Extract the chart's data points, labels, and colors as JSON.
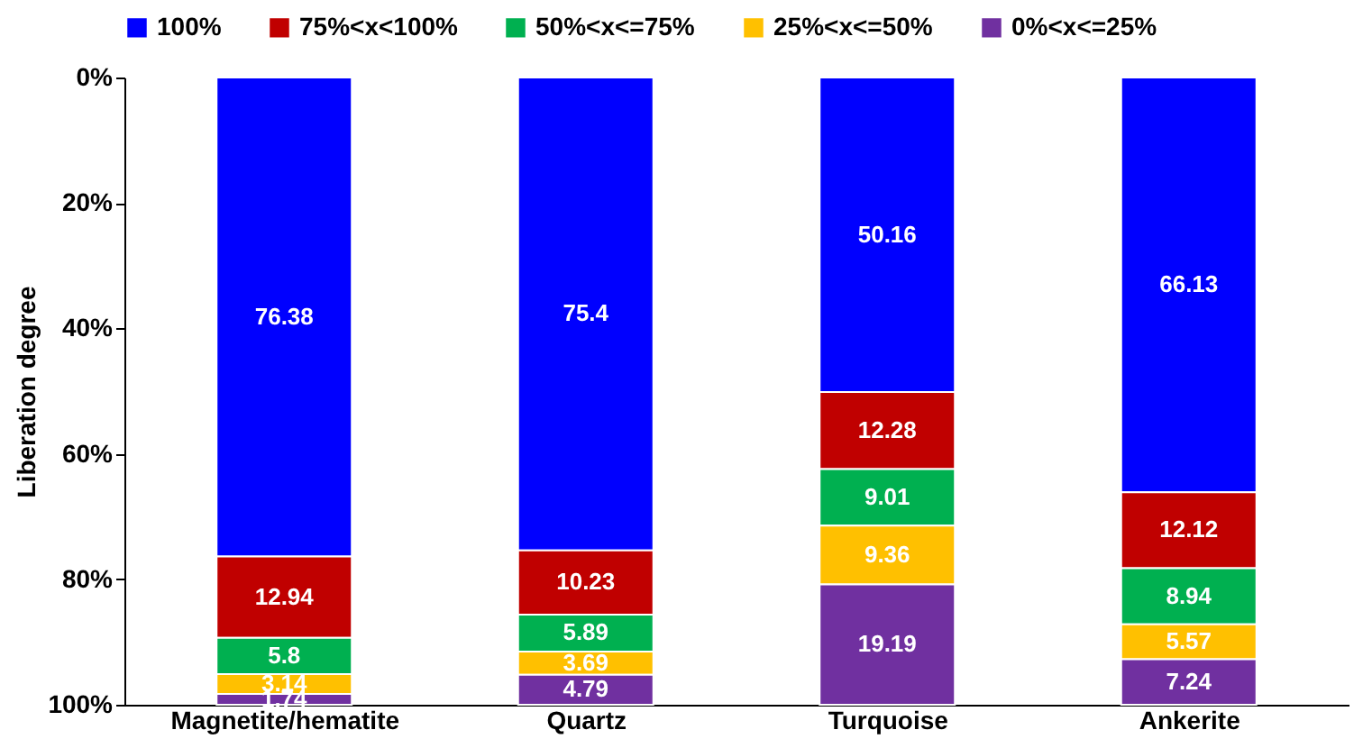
{
  "chart_data": {
    "type": "bar",
    "stacked": true,
    "ylabel": "Liberation degree",
    "categories": [
      "Magnetite/hematite",
      "Quartz",
      "Turquoise",
      "Ankerite"
    ],
    "series": [
      {
        "name": "100%",
        "color": "#0000ff",
        "values": [
          76.38,
          75.4,
          50.16,
          66.13
        ]
      },
      {
        "name": "75%<x<100%",
        "color": "#c00000",
        "values": [
          12.94,
          10.23,
          12.28,
          12.12
        ]
      },
      {
        "name": "50%<x<=75%",
        "color": "#00b050",
        "values": [
          5.8,
          5.89,
          9.01,
          8.94
        ]
      },
      {
        "name": "25%<x<=50%",
        "color": "#ffc000",
        "values": [
          3.14,
          3.69,
          9.36,
          5.57
        ]
      },
      {
        "name": "0%<x<=25%",
        "color": "#7030a0",
        "values": [
          1.74,
          4.79,
          19.19,
          7.24
        ]
      }
    ],
    "ylim": [
      100,
      0
    ],
    "yticks": [
      {
        "value": 0,
        "label": "0%"
      },
      {
        "value": 20,
        "label": "20%"
      },
      {
        "value": 40,
        "label": "40%"
      },
      {
        "value": 60,
        "label": "60%"
      },
      {
        "value": 80,
        "label": "80%"
      },
      {
        "value": 100,
        "label": "100%"
      }
    ],
    "data_labels": true,
    "legend": "top",
    "grid": false
  }
}
